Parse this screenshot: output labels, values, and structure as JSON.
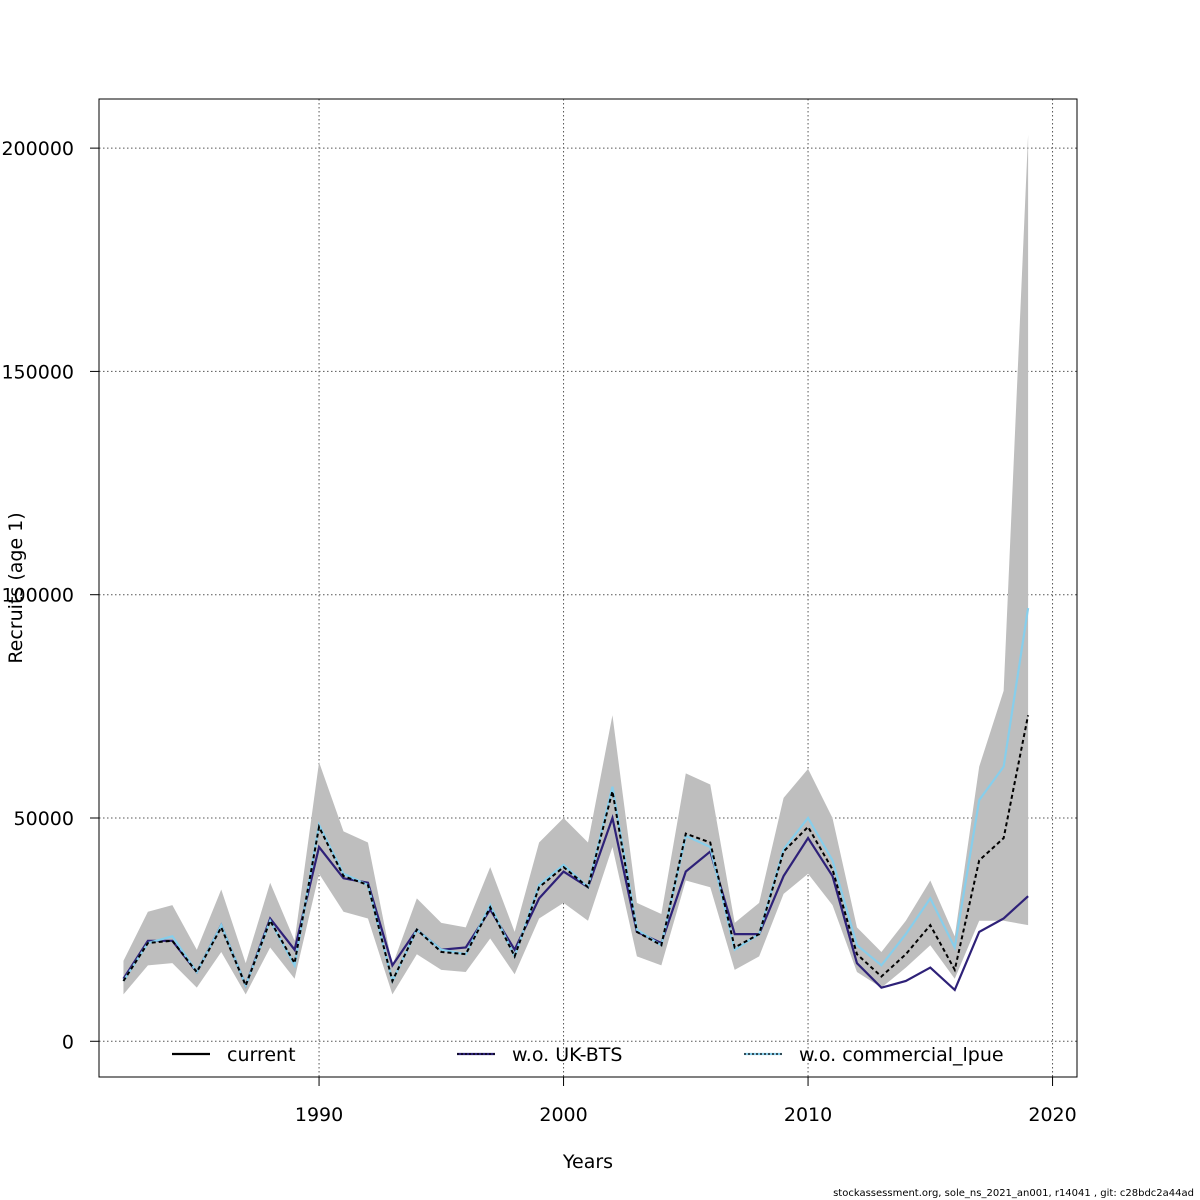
{
  "chart_data": {
    "type": "line",
    "title": "",
    "xlabel": "Years",
    "ylabel": "Recruits (age 1)",
    "xlim": [
      1981,
      2021
    ],
    "ylim": [
      -8000,
      211000
    ],
    "x_ticks": [
      1990,
      2000,
      2010,
      2020
    ],
    "y_ticks": [
      0,
      50000,
      100000,
      150000,
      200000
    ],
    "x_tick_labels": [
      "1990",
      "2000",
      "2010",
      "2020"
    ],
    "y_tick_labels": [
      "0",
      "50000",
      "100000",
      "150000",
      "200000"
    ],
    "grid": true,
    "legend_position": "bottom",
    "x": [
      1982,
      1983,
      1984,
      1985,
      1986,
      1987,
      1988,
      1989,
      1990,
      1991,
      1992,
      1993,
      1994,
      1995,
      1996,
      1997,
      1998,
      1999,
      2000,
      2001,
      2002,
      2003,
      2004,
      2005,
      2006,
      2007,
      2008,
      2009,
      2010,
      2011,
      2012,
      2013,
      2014,
      2015,
      2016,
      2017,
      2018,
      2019
    ],
    "band": {
      "color": "#bebebe",
      "upper": [
        18000,
        29000,
        30500,
        20500,
        34000,
        17500,
        35500,
        22500,
        62500,
        47000,
        44500,
        17000,
        32000,
        26500,
        25500,
        39000,
        24500,
        44500,
        50000,
        44500,
        73000,
        31000,
        28500,
        60000,
        57500,
        26500,
        31000,
        54500,
        61000,
        50000,
        25500,
        20000,
        27000,
        36000,
        23500,
        61500,
        78500,
        203000
      ],
      "lower": [
        10500,
        17000,
        17500,
        12000,
        20000,
        10500,
        21000,
        14000,
        37500,
        29000,
        27500,
        10500,
        19500,
        16000,
        15500,
        23000,
        15000,
        27500,
        31000,
        27000,
        43500,
        19000,
        17000,
        36000,
        34500,
        16000,
        19000,
        33000,
        37500,
        30500,
        15500,
        12000,
        16500,
        21500,
        14000,
        27000,
        27000,
        26000
      ]
    },
    "series": [
      {
        "name": "current",
        "color": "#000000",
        "dash": "",
        "values": [
          13500,
          22000,
          22500,
          15500,
          25500,
          12500,
          27000,
          17500,
          48000,
          37000,
          35000,
          13500,
          25000,
          20000,
          19500,
          30000,
          19000,
          34500,
          39000,
          34500,
          56000,
          24500,
          21500,
          46500,
          44500,
          21000,
          24000,
          42500,
          48000,
          38500,
          19500,
          14500,
          19500,
          26000,
          16000,
          40500,
          45500,
          73000
        ]
      },
      {
        "name": "w.o. UK-BTS",
        "color": "#2e2178",
        "dash": "",
        "values": [
          14000,
          22500,
          22500,
          15500,
          26000,
          12500,
          27500,
          20500,
          43500,
          36500,
          35500,
          17000,
          25000,
          20500,
          21000,
          29500,
          20500,
          32000,
          38000,
          34500,
          50000,
          24500,
          22000,
          38000,
          42500,
          24000,
          24000,
          37000,
          45500,
          37000,
          17500,
          12000,
          13500,
          16500,
          11500,
          24500,
          27500,
          32500
        ]
      },
      {
        "name": "w.o. commercial_lpue",
        "color": "#87ceeb",
        "dash": "",
        "values": [
          13500,
          22000,
          23500,
          15500,
          26000,
          12500,
          27000,
          17000,
          48500,
          37500,
          35000,
          13500,
          25000,
          20500,
          19500,
          30500,
          19000,
          35000,
          39500,
          34500,
          57000,
          25000,
          21500,
          46000,
          43500,
          20500,
          24000,
          43000,
          50000,
          40500,
          21500,
          17000,
          24000,
          32000,
          21000,
          54000,
          61500,
          97000
        ]
      }
    ],
    "legend": [
      {
        "label": "current",
        "color": "#000000",
        "dashed": false
      },
      {
        "label": "w.o. UK-BTS",
        "color": "#2e2178",
        "dashed": true
      },
      {
        "label": "w.o. commercial_lpue",
        "color": "#87ceeb",
        "dashed": true
      }
    ]
  },
  "footer_text": "stockassessment.org, sole_ns_2021_an001, r14041 , git: c28bdc2a44ad"
}
